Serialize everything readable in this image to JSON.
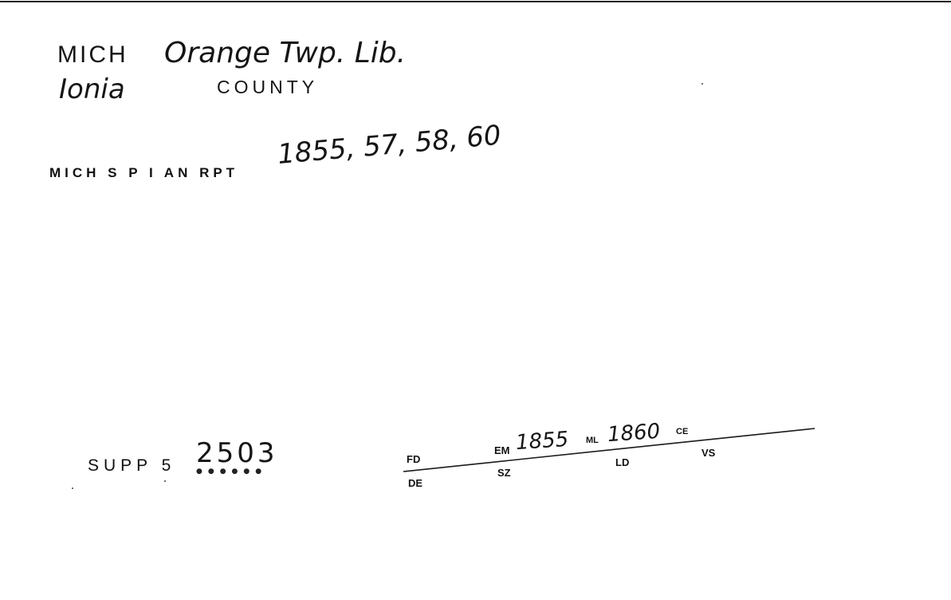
{
  "card": {
    "line1_code": "MICH",
    "line1_place": "Orange Twp. Lib.",
    "line2_county_name": "Ionia",
    "line2_county_word": "COUNTY",
    "source_code": "MICH S P I AN RPT",
    "source_years": "1855, 57, 58, 60",
    "supp_label": "SUPP 5",
    "supp_number": "2503",
    "footer": {
      "fd_label": "FD",
      "de_label": "DE",
      "em_label": "EM",
      "em_value": "1855",
      "sz_label": "SZ",
      "ml_label": "ML",
      "ml_value": "1860",
      "ld_label": "LD",
      "ce_label": "CE",
      "vs_label": "VS"
    }
  }
}
